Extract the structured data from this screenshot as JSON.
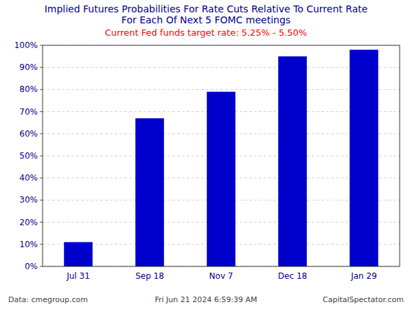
{
  "chart_data": {
    "type": "bar",
    "title": [
      "Implied Futures Probabilities For Rate Cuts Relative To Current Rate",
      "For Each Of Next 5 FOMC meetings"
    ],
    "subtitle": "Current Fed funds target rate: 5.25% - 5.50%",
    "annotations": [
      "Data: cmegroup.com",
      "Fri Jun 21 2024 6:59:39 AM",
      "CapitalSpectator.com"
    ],
    "categories": [
      "Jul 31",
      "Sep 18",
      "Nov 7",
      "Dec 18",
      "Jan 29"
    ],
    "values": [
      11,
      67,
      79,
      95,
      98
    ],
    "color": "#0000CC",
    "ylim": [
      0,
      100
    ],
    "yticks": [
      {
        "value": 0,
        "label": "0%"
      },
      {
        "value": 10,
        "label": "10%"
      },
      {
        "value": 20,
        "label": "20%"
      },
      {
        "value": 30,
        "label": "30%"
      },
      {
        "value": 40,
        "label": "40%"
      },
      {
        "value": 50,
        "label": "50%"
      },
      {
        "value": 60,
        "label": "60%"
      },
      {
        "value": 70,
        "label": "70%"
      },
      {
        "value": 80,
        "label": "80%"
      },
      {
        "value": 90,
        "label": "90%"
      },
      {
        "value": 100,
        "label": "100%"
      }
    ],
    "grid": true
  }
}
